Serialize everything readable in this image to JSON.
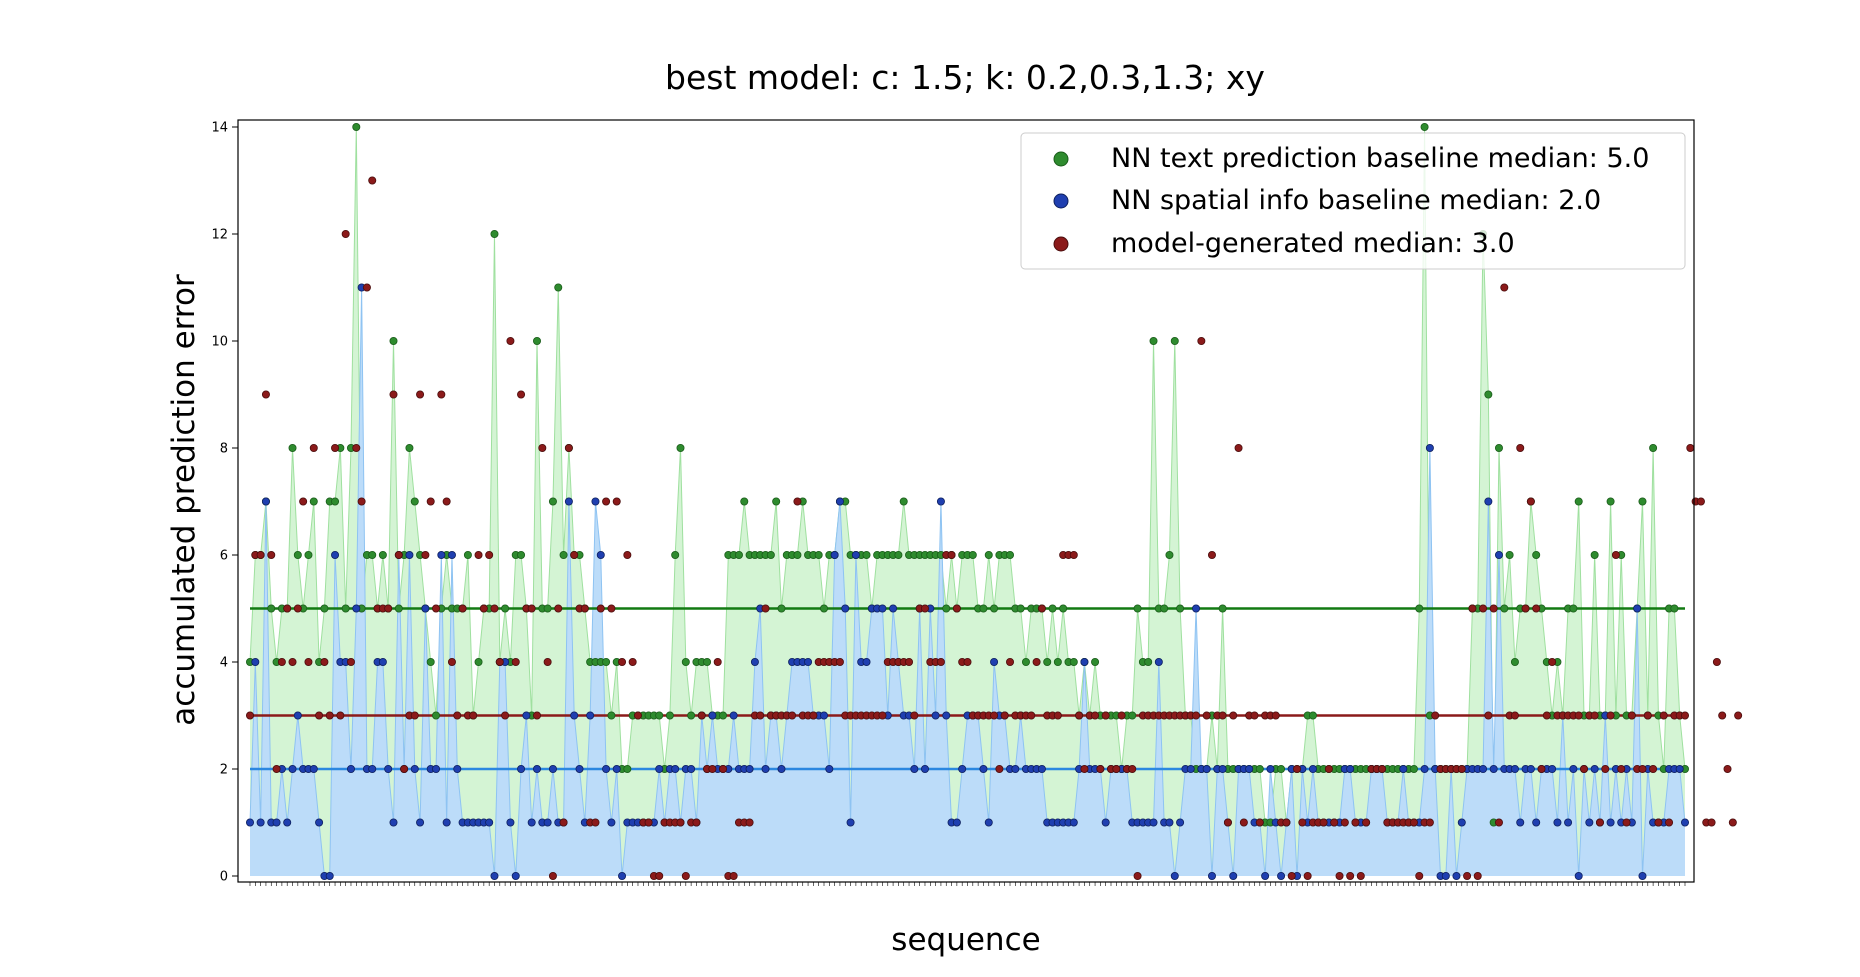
{
  "chart_data": {
    "type": "scatter",
    "title": "best model: c: 1.5; k: 0.2,0.3,1.3; xy",
    "xlabel": "sequence",
    "ylabel": "accumulated prediction error",
    "ylim": [
      0,
      14
    ],
    "yticks": [
      0,
      2,
      4,
      6,
      8,
      10,
      12,
      14
    ],
    "grid": false,
    "legend_position": "top-right",
    "series": [
      {
        "name": "NN text prediction baseline median: 5.0",
        "color": "#2e8b2e",
        "median": 5.0,
        "values": [
          4,
          6,
          6,
          7,
          5,
          4,
          5,
          5,
          8,
          6,
          5,
          6,
          7,
          4,
          5,
          7,
          7,
          8,
          5,
          8,
          14,
          5,
          6,
          6,
          5,
          6,
          5,
          10,
          5,
          6,
          8,
          7,
          6,
          5,
          4,
          3,
          5,
          6,
          5,
          5,
          5,
          6,
          3,
          4,
          5,
          5,
          12,
          4,
          5,
          4,
          6,
          6,
          5,
          3,
          10,
          5,
          5,
          7,
          11,
          6,
          8,
          6,
          6,
          5,
          4,
          4,
          4,
          4,
          3,
          4,
          2,
          2,
          3,
          3,
          3,
          3,
          3,
          3,
          2,
          3,
          6,
          8,
          4,
          3,
          4,
          4,
          4,
          3,
          3,
          3,
          6,
          6,
          6,
          7,
          6,
          6,
          6,
          6,
          6,
          7,
          5,
          6,
          6,
          6,
          7,
          6,
          6,
          6,
          5,
          6,
          6,
          7,
          7,
          6,
          6,
          6,
          6,
          5,
          6,
          6,
          6,
          6,
          6,
          7,
          6,
          6,
          6,
          6,
          6,
          6,
          6,
          5,
          6,
          5,
          6,
          6,
          6,
          5,
          5,
          6,
          5,
          6,
          6,
          6,
          5,
          5,
          4,
          5,
          5,
          5,
          4,
          5,
          4,
          5,
          4,
          4,
          3,
          4,
          3,
          4,
          3,
          3,
          3,
          3,
          2,
          3,
          3,
          5,
          4,
          4,
          10,
          5,
          5,
          6,
          10,
          5,
          3,
          3,
          2,
          2,
          2,
          3,
          2,
          5,
          2,
          2,
          2,
          2,
          2,
          2,
          2,
          1,
          1,
          2,
          2,
          1,
          2,
          2,
          2,
          3,
          3,
          2,
          2,
          2,
          2,
          2,
          2,
          2,
          2,
          2,
          2,
          2,
          2,
          2,
          2,
          2,
          2,
          2,
          2,
          2,
          5,
          14,
          3,
          2,
          2,
          2,
          2,
          2,
          2,
          2,
          5,
          5,
          12,
          9,
          1,
          8,
          5,
          6,
          4,
          5,
          5,
          7,
          6,
          5,
          4,
          3,
          4,
          3,
          5,
          5,
          7,
          3,
          3,
          6,
          3,
          3,
          7,
          3,
          6,
          3,
          3,
          5,
          7,
          3,
          8,
          3,
          2,
          5,
          5,
          3,
          2
        ]
      },
      {
        "name": "NN spatial info baseline median: 2.0",
        "color": "#1f3fb0",
        "median": 2.0,
        "values": [
          1,
          4,
          1,
          7,
          1,
          1,
          2,
          1,
          2,
          3,
          2,
          2,
          2,
          1,
          0,
          0,
          6,
          4,
          4,
          2,
          5,
          11,
          2,
          2,
          4,
          4,
          2,
          1,
          6,
          2,
          6,
          2,
          1,
          5,
          2,
          2,
          6,
          1,
          6,
          2,
          1,
          1,
          1,
          1,
          1,
          1,
          0,
          4,
          4,
          1,
          0,
          2,
          3,
          1,
          2,
          1,
          1,
          2,
          1,
          1,
          7,
          3,
          2,
          1,
          3,
          7,
          6,
          2,
          1,
          2,
          0,
          1,
          1,
          1,
          1,
          1,
          1,
          2,
          1,
          2,
          2,
          1,
          2,
          2,
          1,
          3,
          2,
          3,
          2,
          2,
          2,
          3,
          2,
          2,
          2,
          4,
          5,
          2,
          3,
          3,
          2,
          3,
          4,
          4,
          4,
          4,
          3,
          3,
          3,
          2,
          6,
          7,
          5,
          1,
          6,
          4,
          4,
          5,
          5,
          5,
          3,
          5,
          4,
          3,
          3,
          2,
          5,
          2,
          5,
          3,
          7,
          3,
          1,
          1,
          2,
          3,
          3,
          3,
          2,
          1,
          4,
          3,
          3,
          2,
          2,
          3,
          2,
          2,
          2,
          2,
          1,
          1,
          1,
          1,
          1,
          1,
          2,
          4,
          2,
          2,
          2,
          1,
          2,
          2,
          2,
          2,
          1,
          1,
          1,
          1,
          1,
          4,
          1,
          1,
          0,
          1,
          2,
          2,
          5,
          2,
          2,
          0,
          2,
          2,
          1,
          0,
          2,
          2,
          2,
          1,
          1,
          0,
          2,
          1,
          0,
          1,
          2,
          0,
          2,
          1,
          2,
          1,
          1,
          1,
          1,
          1,
          2,
          2,
          1,
          1,
          1,
          2,
          2,
          2,
          1,
          1,
          1,
          2,
          1,
          1,
          1,
          2,
          8,
          2,
          0,
          0,
          2,
          0,
          1,
          2,
          2,
          2,
          2,
          7,
          2,
          6,
          2,
          2,
          2,
          1,
          2,
          2,
          1,
          2,
          2,
          2,
          1,
          3,
          1,
          2,
          0,
          2,
          1,
          2,
          1,
          3,
          1,
          2,
          1,
          2,
          1,
          5,
          0,
          2,
          1,
          1,
          1,
          2,
          2,
          2,
          1
        ]
      },
      {
        "name": "model-generated median: 3.0",
        "color": "#8b1a1a",
        "median": 3.0,
        "values": [
          3,
          6,
          6,
          9,
          6,
          2,
          4,
          5,
          4,
          5,
          7,
          4,
          8,
          3,
          4,
          3,
          8,
          3,
          12,
          4,
          8,
          7,
          11,
          13,
          5,
          5,
          5,
          9,
          6,
          2,
          3,
          3,
          9,
          6,
          7,
          5,
          9,
          7,
          4,
          3,
          5,
          3,
          3,
          6,
          5,
          6,
          5,
          4,
          3,
          10,
          4,
          9,
          5,
          5,
          3,
          8,
          4,
          0,
          5,
          1,
          8,
          6,
          5,
          5,
          1,
          1,
          5,
          7,
          5,
          7,
          4,
          6,
          4,
          3,
          1,
          1,
          0,
          0,
          1,
          1,
          1,
          1,
          0,
          1,
          1,
          3,
          2,
          2,
          4,
          2,
          0,
          0,
          1,
          1,
          1,
          3,
          3,
          5,
          3,
          3,
          3,
          3,
          3,
          7,
          3,
          3,
          3,
          4,
          4,
          4,
          4,
          4,
          3,
          3,
          3,
          3,
          3,
          3,
          3,
          3,
          4,
          4,
          4,
          4,
          4,
          3,
          5,
          5,
          4,
          4,
          4,
          6,
          6,
          5,
          4,
          4,
          3,
          3,
          3,
          3,
          3,
          2,
          3,
          4,
          3,
          3,
          3,
          3,
          4,
          5,
          3,
          3,
          3,
          6,
          6,
          6,
          3,
          2,
          3,
          3,
          2,
          3,
          2,
          2,
          3,
          2,
          2,
          0,
          3,
          3,
          3,
          3,
          3,
          3,
          3,
          3,
          3,
          3,
          3,
          10,
          3,
          6,
          3,
          3,
          1,
          3,
          8,
          1,
          3,
          3,
          1,
          3,
          3,
          3,
          1,
          1,
          0,
          2,
          1,
          0,
          1,
          1,
          1,
          2,
          1,
          0,
          1,
          0,
          1,
          0,
          1,
          2,
          2,
          2,
          1,
          1,
          1,
          1,
          1,
          1,
          0,
          1,
          1,
          3,
          2,
          2,
          2,
          2,
          2,
          0,
          5,
          0,
          5,
          3,
          5,
          1,
          11,
          3,
          3,
          8,
          5,
          7,
          5,
          2,
          3,
          4,
          3,
          3,
          3,
          3,
          3,
          2,
          3,
          3,
          1,
          2,
          3,
          6,
          2,
          1,
          3,
          2,
          2,
          3,
          2,
          1,
          3,
          1,
          3,
          3,
          3,
          8,
          7,
          7,
          1,
          1,
          4,
          3,
          2,
          1,
          3
        ]
      }
    ]
  }
}
